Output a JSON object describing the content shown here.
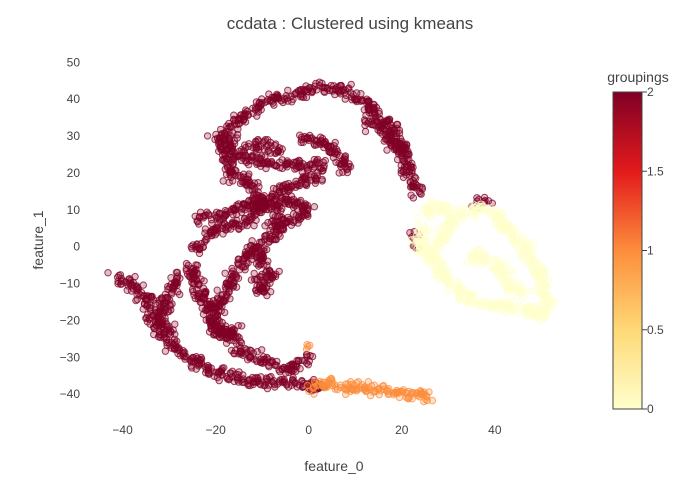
{
  "chart_data": {
    "type": "scatter",
    "title": "ccdata : Clustered using kmeans",
    "xlabel": "feature_0",
    "ylabel": "feature_1",
    "xlim": [
      -47,
      54
    ],
    "ylim": [
      -47,
      52
    ],
    "xticks": [
      -40,
      -20,
      0,
      20,
      40
    ],
    "yticks": [
      -40,
      -30,
      -20,
      -10,
      0,
      10,
      20,
      30,
      40,
      50
    ],
    "colorbar": {
      "title": "groupings",
      "range": [
        0,
        2
      ],
      "ticks": [
        "0",
        "0.5",
        "1",
        "1.5",
        "2"
      ],
      "colorscale": [
        "#ffffcc",
        "#fed976",
        "#fd8d3c",
        "#e31a1c",
        "#800026"
      ]
    },
    "grid": false,
    "series": [
      {
        "group": 2,
        "color": "#800026",
        "path": [
          [
            -42,
            -8
          ],
          [
            -38,
            -10
          ],
          [
            -35,
            -14
          ],
          [
            -33,
            -20
          ],
          [
            -30,
            -26
          ],
          [
            -26,
            -30
          ],
          [
            -22,
            -33
          ],
          [
            -18,
            -35
          ],
          [
            -14,
            -36
          ],
          [
            -10,
            -37
          ],
          [
            -6,
            -37
          ],
          [
            -2,
            -37
          ],
          [
            1,
            -38
          ],
          [
            3,
            -39
          ]
        ],
        "path2": [
          [
            -26,
            -4
          ],
          [
            -24,
            -10
          ],
          [
            -22,
            -16
          ],
          [
            -20,
            -21
          ],
          [
            -17,
            -25
          ],
          [
            -13,
            -29
          ],
          [
            -9,
            -31
          ],
          [
            -5,
            -33
          ],
          [
            -2,
            -32
          ],
          [
            0,
            -30
          ]
        ],
        "path3": [
          [
            -24,
            -1
          ],
          [
            -22,
            3
          ],
          [
            -19,
            5
          ],
          [
            -15,
            6
          ],
          [
            -12,
            8
          ],
          [
            -10,
            11
          ],
          [
            -11,
            15
          ],
          [
            -14,
            18
          ],
          [
            -17,
            20
          ],
          [
            -18,
            25
          ],
          [
            -17,
            30
          ],
          [
            -16,
            34
          ],
          [
            -12,
            37
          ],
          [
            -8,
            40
          ],
          [
            -3,
            41
          ],
          [
            2,
            43
          ],
          [
            6,
            43
          ],
          [
            10,
            41
          ],
          [
            14,
            37
          ],
          [
            18,
            32
          ],
          [
            20,
            27
          ],
          [
            21,
            23
          ],
          [
            22,
            18
          ],
          [
            24,
            14
          ]
        ],
        "path4": [
          [
            -24,
            8
          ],
          [
            -20,
            8
          ],
          [
            -16,
            10
          ],
          [
            -12,
            12
          ],
          [
            -8,
            12
          ],
          [
            -6,
            8
          ],
          [
            -7,
            4
          ],
          [
            -10,
            1
          ],
          [
            -13,
            -2
          ],
          [
            -15,
            -6
          ],
          [
            -17,
            -10
          ],
          [
            -19,
            -16
          ],
          [
            -21,
            -20
          ],
          [
            -19,
            -24
          ],
          [
            -15,
            -22
          ]
        ],
        "path5": [
          [
            -20,
            31
          ],
          [
            -18,
            27
          ],
          [
            -14,
            24
          ],
          [
            -9,
            23
          ],
          [
            -4,
            22
          ],
          [
            0,
            22
          ],
          [
            3,
            23
          ]
        ],
        "path6": [
          [
            -12,
            0
          ],
          [
            -10,
            -4
          ],
          [
            -8,
            -8
          ],
          [
            -10,
            -12
          ],
          [
            -12,
            -8
          ]
        ],
        "path7": [
          [
            -11,
            12
          ],
          [
            -6,
            13
          ],
          [
            -2,
            12
          ],
          [
            0,
            10
          ],
          [
            -4,
            7
          ],
          [
            -8,
            6
          ]
        ],
        "path8": [
          [
            -8,
            14
          ],
          [
            -4,
            17
          ],
          [
            0,
            18
          ],
          [
            3,
            20
          ]
        ],
        "path9": [
          [
            -2,
            30
          ],
          [
            4,
            28
          ],
          [
            7,
            24
          ],
          [
            8,
            20
          ]
        ],
        "path10": [
          [
            12,
            35
          ],
          [
            16,
            32
          ],
          [
            18,
            28
          ],
          [
            20,
            25
          ]
        ],
        "path11": [
          [
            37,
            12
          ],
          [
            39,
            13
          ]
        ],
        "path12": [
          [
            23,
            3
          ],
          [
            23,
            1
          ]
        ],
        "path13": [
          [
            -14,
            27
          ],
          [
            -10,
            28
          ],
          [
            -6,
            26
          ]
        ],
        "path14": [
          [
            -28,
            -7
          ],
          [
            -30,
            -13
          ],
          [
            -32,
            -19
          ],
          [
            -30,
            -23
          ]
        ]
      },
      {
        "group": 1,
        "color": "#fd8d3c",
        "path": [
          [
            0,
            -38
          ],
          [
            3,
            -37
          ],
          [
            6,
            -38
          ],
          [
            9,
            -38
          ],
          [
            12,
            -38
          ],
          [
            15,
            -39
          ],
          [
            18,
            -39
          ],
          [
            21,
            -40
          ],
          [
            24,
            -40
          ],
          [
            26,
            -41
          ]
        ],
        "path2": [
          [
            0,
            -27
          ]
        ]
      },
      {
        "group": 0,
        "color": "#ffffcc",
        "path": [
          [
            24,
            9
          ],
          [
            27,
            11
          ],
          [
            30,
            10
          ],
          [
            31,
            7
          ],
          [
            29,
            3
          ],
          [
            27,
            0
          ],
          [
            27,
            -4
          ],
          [
            29,
            -8
          ],
          [
            31,
            -11
          ],
          [
            33,
            -13
          ],
          [
            36,
            -15
          ],
          [
            40,
            -16
          ],
          [
            44,
            -16
          ],
          [
            47,
            -17
          ],
          [
            50,
            -18
          ],
          [
            51,
            -19
          ]
        ],
        "path2": [
          [
            33,
            9
          ],
          [
            36,
            11
          ],
          [
            38,
            10
          ],
          [
            40,
            9
          ],
          [
            42,
            6
          ],
          [
            44,
            3
          ],
          [
            46,
            0
          ],
          [
            48,
            -4
          ],
          [
            50,
            -9
          ],
          [
            51,
            -14
          ],
          [
            51,
            -18
          ]
        ],
        "path3": [
          [
            25,
            5
          ],
          [
            24,
            3
          ],
          [
            24,
            0
          ],
          [
            26,
            -3
          ]
        ],
        "path4": [
          [
            34,
            -3
          ],
          [
            37,
            -2
          ],
          [
            40,
            -5
          ],
          [
            43,
            -9
          ],
          [
            46,
            -13
          ]
        ]
      }
    ]
  }
}
